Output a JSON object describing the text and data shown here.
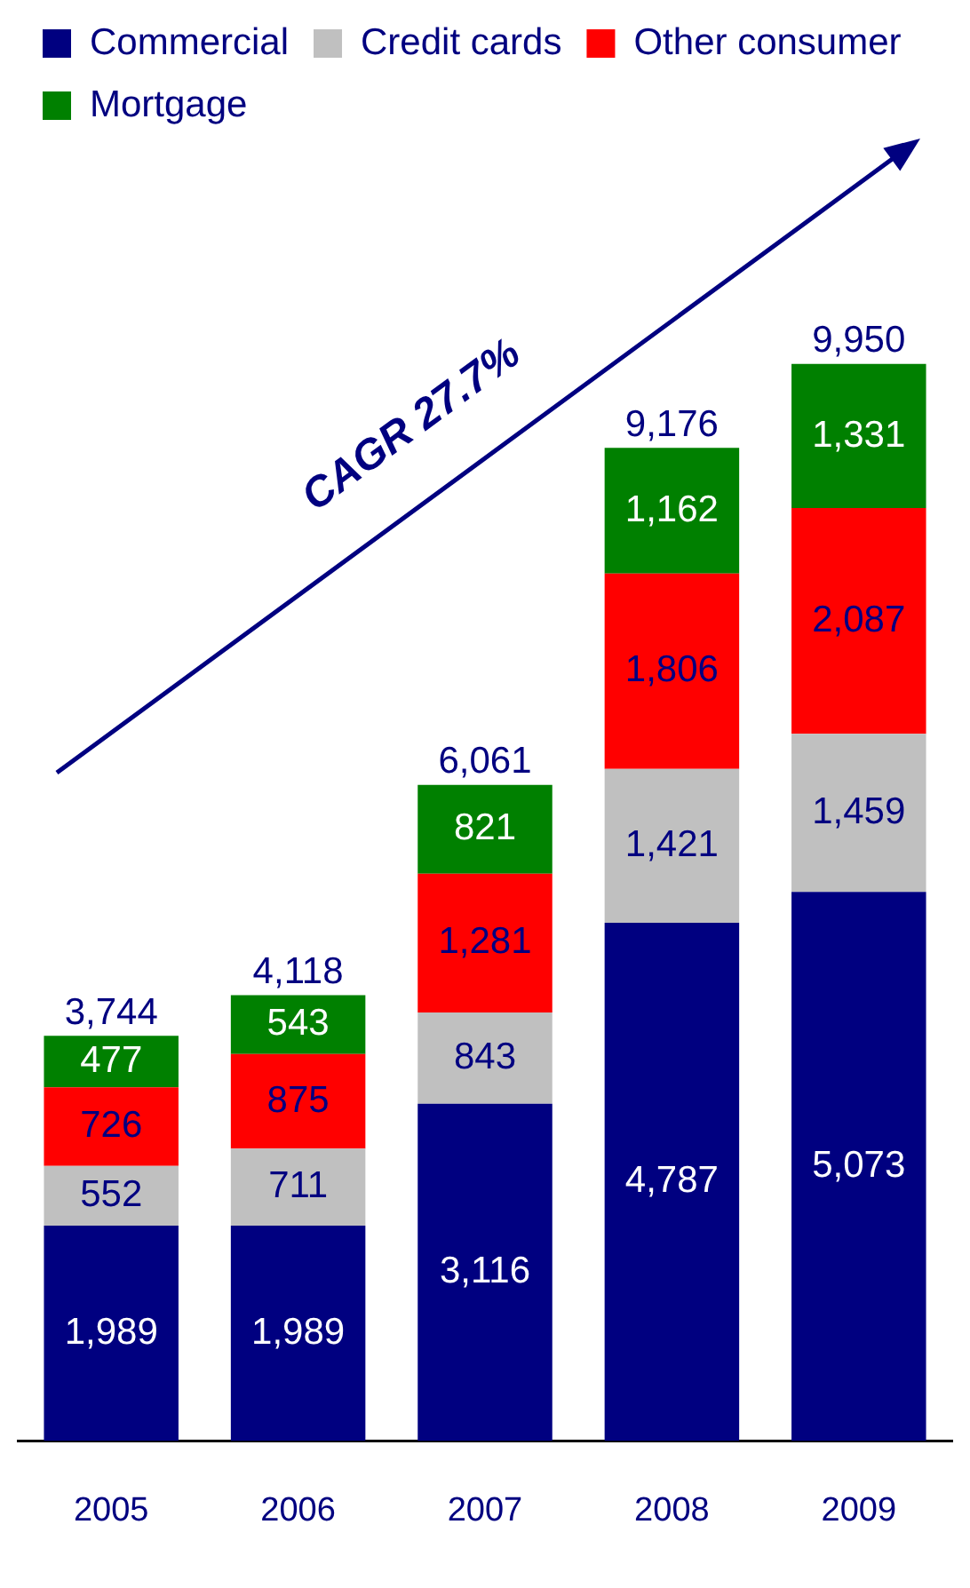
{
  "chart_data": {
    "type": "bar",
    "stacked": true,
    "categories": [
      "2005",
      "2006",
      "2007",
      "2008",
      "2009"
    ],
    "series": [
      {
        "name": "Commercial",
        "color": "#000080",
        "values": [
          1989,
          1989,
          3116,
          4787,
          5073
        ],
        "value_labels": [
          "1,989",
          "1,989",
          "3,116",
          "4,787",
          "5,073"
        ]
      },
      {
        "name": "Credit cards",
        "color": "#c0c0c0",
        "values": [
          552,
          711,
          843,
          1421,
          1459
        ],
        "value_labels": [
          "552",
          "711",
          "843",
          "1,421",
          "1,459"
        ]
      },
      {
        "name": "Other consumer",
        "color": "#ff0000",
        "values": [
          726,
          875,
          1281,
          1806,
          2087
        ],
        "value_labels": [
          "726",
          "875",
          "1,281",
          "1,806",
          "2,087"
        ]
      },
      {
        "name": "Mortgage",
        "color": "#008000",
        "values": [
          477,
          543,
          821,
          1162,
          1331
        ],
        "value_labels": [
          "477",
          "543",
          "821",
          "1,162",
          "1,331"
        ]
      }
    ],
    "totals": [
      "3,744",
      "4,118",
      "6,061",
      "9,176",
      "9,950"
    ],
    "annotations": [
      "CAGR 27.7%"
    ],
    "legend": "top",
    "grid": false
  }
}
